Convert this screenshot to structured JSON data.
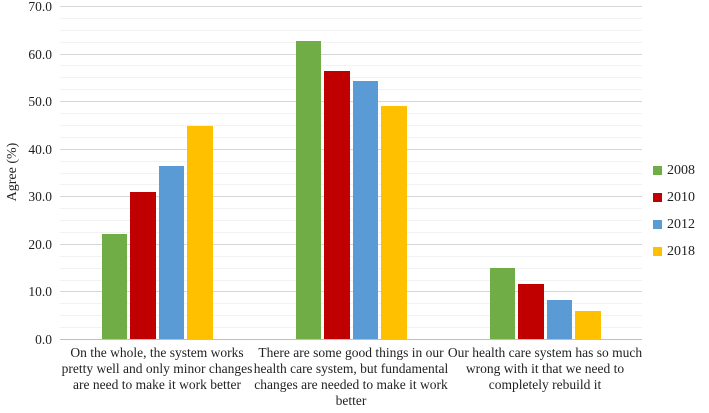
{
  "chart_data": {
    "type": "bar",
    "title": "",
    "xlabel": "",
    "ylabel": "Agree (%)",
    "ylim": [
      0,
      70
    ],
    "ytick_step": 10,
    "yminor_step": 2.5,
    "ytick_labels": [
      "0.0",
      "10.0",
      "20.0",
      "30.0",
      "40.0",
      "50.0",
      "60.0",
      "70.0"
    ],
    "grid": true,
    "legend_position": "right",
    "categories": [
      "On the whole, the system works pretty well and only minor changes are need to make it work better",
      "There are some good things in our health care system, but fundamental changes are needed to make it work better",
      "Our health care system has so much wrong with it that we need to completely rebuild it"
    ],
    "series": [
      {
        "name": "2008",
        "color": "#70AD47",
        "values": [
          22.0,
          62.6,
          14.9
        ]
      },
      {
        "name": "2010",
        "color": "#C00000",
        "values": [
          31.0,
          56.4,
          11.5
        ]
      },
      {
        "name": "2012",
        "color": "#5B9BD5",
        "values": [
          36.4,
          54.3,
          8.2
        ]
      },
      {
        "name": "2018",
        "color": "#FFC000",
        "values": [
          44.8,
          48.9,
          5.9
        ]
      }
    ]
  }
}
